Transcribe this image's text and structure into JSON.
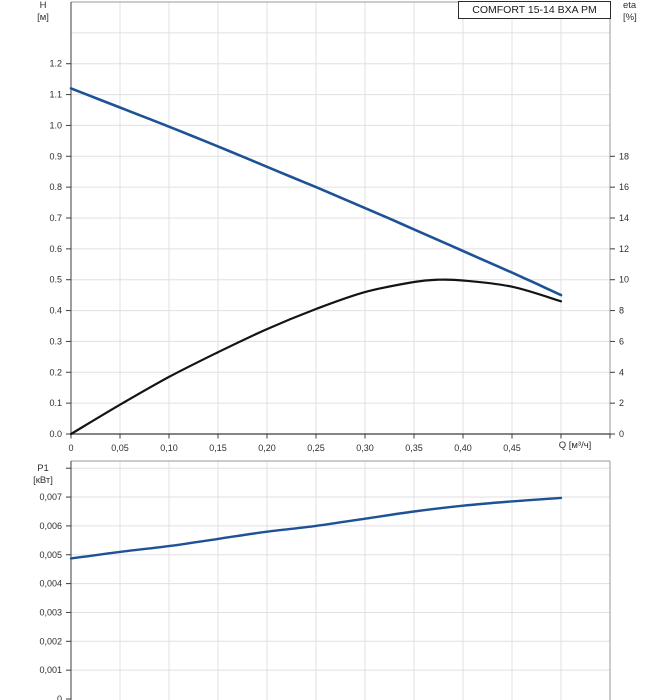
{
  "colors": {
    "curve_blue": "#1e5295",
    "curve_black": "#141414",
    "grid": "#e0e0e0",
    "frame": "#9a9a9a",
    "axis": "#3c3c3c",
    "text": "#2e2e2e",
    "background": "#ffffff"
  },
  "chart_data": [
    {
      "type": "line",
      "title": "COMFORT 15-14 BXA PM",
      "xlabel": "Q [м³/ч]",
      "ylabel_left": "H [м]",
      "ylabel_left_lines": [
        "H",
        "[м]"
      ],
      "ylabel_right": "eta [%]",
      "ylabel_right_lines": [
        "eta",
        "[%]"
      ],
      "xlim": [
        0,
        0.55
      ],
      "ylim_left": [
        0,
        1.4
      ],
      "ylim_right": [
        0,
        28
      ],
      "grid": true,
      "x_grid_values": [
        0.05,
        0.1,
        0.15,
        0.2,
        0.25,
        0.3,
        0.35,
        0.4,
        0.45,
        0.5
      ],
      "x_tick_values": [
        0,
        0.05,
        0.1,
        0.15,
        0.2,
        0.25,
        0.3,
        0.35,
        0.4,
        0.45,
        0.5,
        0.55
      ],
      "x_tick_labels": [
        "0",
        "0,05",
        "0,10",
        "0,15",
        "0,20",
        "0,25",
        "0,30",
        "0,35",
        "0,40",
        "0,45",
        "",
        ""
      ],
      "y_grid_left_values": [
        0.1,
        0.2,
        0.3,
        0.4,
        0.5,
        0.6,
        0.7,
        0.8,
        0.9,
        1.0,
        1.1,
        1.2,
        1.3
      ],
      "y_tick_left_values": [
        0,
        0.1,
        0.2,
        0.3,
        0.4,
        0.5,
        0.6,
        0.7,
        0.8,
        0.9,
        1.0,
        1.1,
        1.2
      ],
      "y_tick_left_labels": [
        "0.0",
        "0.1",
        "0.2",
        "0.3",
        "0.4",
        "0.5",
        "0.6",
        "0.7",
        "0.8",
        "0.9",
        "1.0",
        "1.1",
        "1.2"
      ],
      "y_tick_right_values": [
        0,
        2,
        4,
        6,
        8,
        10,
        12,
        14,
        16,
        18
      ],
      "y_tick_right_labels": [
        "0",
        "2",
        "4",
        "6",
        "8",
        "10",
        "12",
        "14",
        "16",
        "18"
      ],
      "series": [
        {
          "name": "head-curve",
          "axis": "left",
          "color_key": "curve_blue",
          "stroke_width": 2.6,
          "x": [
            0,
            0.025,
            0.05,
            0.075,
            0.1,
            0.125,
            0.15,
            0.175,
            0.2,
            0.225,
            0.25,
            0.275,
            0.3,
            0.325,
            0.35,
            0.375,
            0.4,
            0.425,
            0.45,
            0.475,
            0.5
          ],
          "y": [
            1.12,
            1.089,
            1.058,
            1.027,
            0.996,
            0.964,
            0.932,
            0.899,
            0.866,
            0.833,
            0.8,
            0.766,
            0.732,
            0.698,
            0.663,
            0.628,
            0.593,
            0.558,
            0.523,
            0.487,
            0.45
          ]
        },
        {
          "name": "efficiency-curve",
          "axis": "right",
          "color_key": "curve_black",
          "stroke_width": 2.2,
          "x": [
            0,
            0.05,
            0.1,
            0.15,
            0.2,
            0.25,
            0.3,
            0.35,
            0.375,
            0.4,
            0.45,
            0.5
          ],
          "y": [
            0,
            1.9,
            3.7,
            5.3,
            6.8,
            8.1,
            9.2,
            9.85,
            10.0,
            9.95,
            9.55,
            8.6
          ]
        }
      ]
    },
    {
      "type": "line",
      "title": "",
      "xlabel": "",
      "ylabel_left": "P1 [кВт]",
      "ylabel_left_lines": [
        "P1",
        "[кВт]"
      ],
      "xlim": [
        0,
        0.55
      ],
      "ylim_left": [
        0,
        0.00825
      ],
      "grid": true,
      "x_grid_values": [
        0.05,
        0.1,
        0.15,
        0.2,
        0.25,
        0.3,
        0.35,
        0.4,
        0.45,
        0.5
      ],
      "x_tick_values": [],
      "x_tick_labels": [],
      "y_grid_left_values": [
        0.001,
        0.002,
        0.003,
        0.004,
        0.005,
        0.006,
        0.007,
        0.008
      ],
      "y_tick_left_values": [
        0,
        0.001,
        0.002,
        0.003,
        0.004,
        0.005,
        0.006,
        0.007,
        0.008
      ],
      "y_tick_left_labels": [
        "0",
        "0,001",
        "0,002",
        "0,003",
        "0,004",
        "0,005",
        "0,006",
        "0,007",
        ""
      ],
      "series": [
        {
          "name": "power-curve",
          "axis": "left",
          "color_key": "curve_blue",
          "stroke_width": 2.4,
          "x": [
            0,
            0.05,
            0.1,
            0.15,
            0.2,
            0.25,
            0.3,
            0.35,
            0.4,
            0.45,
            0.5
          ],
          "y": [
            0.00487,
            0.0051,
            0.0053,
            0.00555,
            0.0058,
            0.006,
            0.00625,
            0.0065,
            0.0067,
            0.00685,
            0.00697
          ]
        }
      ]
    }
  ]
}
